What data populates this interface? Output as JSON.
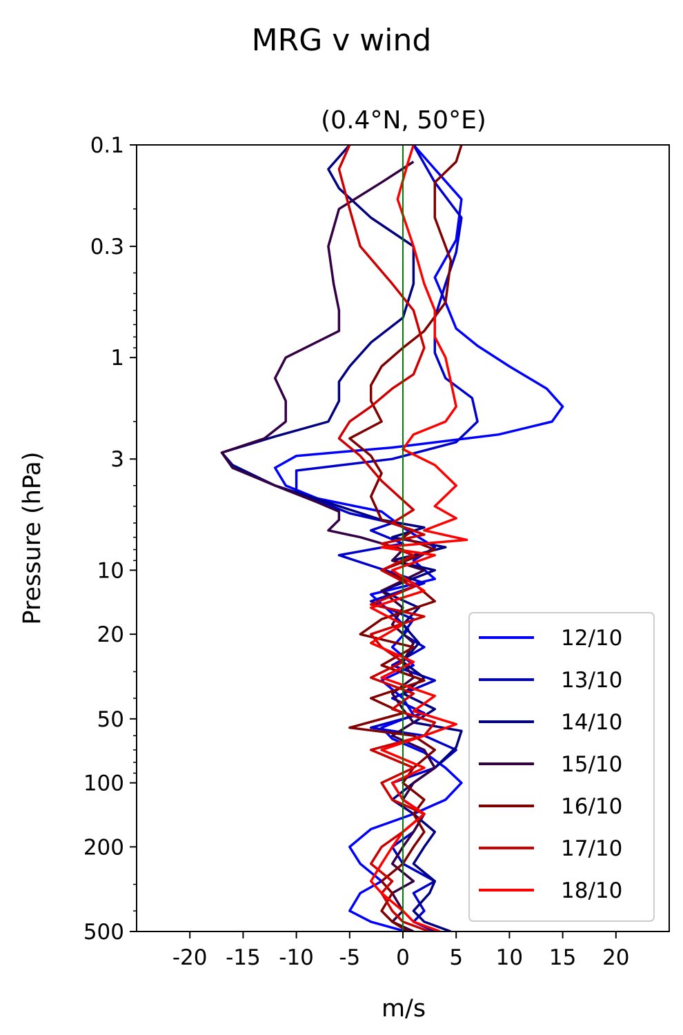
{
  "chart_data": {
    "type": "line",
    "title": "MRG v wind",
    "subtitle": "(0.4°N, 50°E)",
    "xlabel": "m/s",
    "ylabel": "Pressure (hPa)",
    "xlim": [
      -25,
      25
    ],
    "ylim": [
      500,
      0.1
    ],
    "yscale": "log",
    "xticks": [
      -20,
      -15,
      -10,
      -5,
      0,
      5,
      10,
      15,
      20
    ],
    "xtick_labels": [
      "-20",
      "-15",
      "-10",
      "-5",
      "0",
      "5",
      "10",
      "15",
      "20"
    ],
    "yticks": [
      0.1,
      0.3,
      1,
      3,
      10,
      20,
      50,
      100,
      200,
      500
    ],
    "ytick_labels": [
      "0.1",
      "0.3",
      "1",
      "3",
      "10",
      "20",
      "50",
      "100",
      "200",
      "500"
    ],
    "grid": false,
    "legend": "lower-right",
    "reference_line": {
      "x": 0,
      "color": "#008000"
    },
    "series": [
      {
        "name": "12/10",
        "color": "#0000ff",
        "points": [
          [
            0.3,
            500
          ],
          [
            -3,
            450
          ],
          [
            -5,
            400
          ],
          [
            -4,
            330
          ],
          [
            -2,
            290
          ],
          [
            -4,
            240
          ],
          [
            -5,
            200
          ],
          [
            -3,
            165
          ],
          [
            1,
            140
          ],
          [
            4,
            120
          ],
          [
            5.5,
            100
          ],
          [
            4,
            85
          ],
          [
            2,
            72
          ],
          [
            -1,
            62
          ],
          [
            -2,
            55
          ],
          [
            1,
            48
          ],
          [
            0,
            40
          ],
          [
            -2,
            33
          ],
          [
            1,
            28
          ],
          [
            -1,
            23
          ],
          [
            0.5,
            19
          ],
          [
            -1,
            16
          ],
          [
            -3,
            13
          ],
          [
            3,
            11
          ],
          [
            1,
            9
          ],
          [
            3,
            7.8
          ],
          [
            0,
            6.3
          ],
          [
            -2,
            5.3
          ],
          [
            -8,
            4.6
          ],
          [
            -11,
            4
          ],
          [
            -12,
            3.3
          ],
          [
            -10,
            2.9
          ],
          [
            -1,
            2.65
          ],
          [
            9,
            2.3
          ],
          [
            14,
            2
          ],
          [
            15,
            1.7
          ],
          [
            13.5,
            1.4
          ],
          [
            10,
            1.1
          ],
          [
            7,
            0.88
          ],
          [
            5,
            0.73
          ],
          [
            4,
            0.55
          ],
          [
            3,
            0.42
          ],
          [
            5,
            0.28
          ],
          [
            5.5,
            0.18
          ],
          [
            3,
            0.13
          ],
          [
            1,
            0.1
          ]
        ]
      },
      {
        "name": "13/10",
        "color": "#0000cc",
        "points": [
          [
            3,
            500
          ],
          [
            1,
            450
          ],
          [
            2,
            400
          ],
          [
            1,
            330
          ],
          [
            3,
            290
          ],
          [
            0,
            240
          ],
          [
            -1,
            200
          ],
          [
            1,
            170
          ],
          [
            2,
            140
          ],
          [
            0,
            120
          ],
          [
            -1,
            100
          ],
          [
            3,
            85
          ],
          [
            5,
            70
          ],
          [
            2,
            60
          ],
          [
            -3,
            55
          ],
          [
            2,
            47
          ],
          [
            -1,
            40
          ],
          [
            3,
            33
          ],
          [
            -1,
            28
          ],
          [
            2,
            23
          ],
          [
            0,
            20
          ],
          [
            1,
            17
          ],
          [
            -3,
            14
          ],
          [
            2,
            11.5
          ],
          [
            -6,
            8.5
          ],
          [
            0,
            7.5
          ],
          [
            -3,
            6.5
          ],
          [
            -1,
            6
          ],
          [
            -5,
            5.4
          ],
          [
            -10,
            4.3
          ],
          [
            -10,
            3.4
          ],
          [
            -1,
            3
          ],
          [
            5,
            2.5
          ],
          [
            7,
            2
          ],
          [
            6.5,
            1.55
          ],
          [
            4,
            1.25
          ],
          [
            3,
            0.95
          ],
          [
            3,
            0.65
          ],
          [
            4,
            0.45
          ],
          [
            5,
            0.32
          ],
          [
            5.5,
            0.22
          ],
          [
            3,
            0.15
          ],
          [
            1,
            0.1
          ]
        ]
      },
      {
        "name": "14/10",
        "color": "#000080",
        "points": [
          [
            4.5,
            500
          ],
          [
            2,
            450
          ],
          [
            1,
            400
          ],
          [
            2.5,
            330
          ],
          [
            3,
            290
          ],
          [
            1,
            240
          ],
          [
            2,
            200
          ],
          [
            3,
            170
          ],
          [
            1,
            140
          ],
          [
            -1,
            120
          ],
          [
            1,
            100
          ],
          [
            3,
            85
          ],
          [
            5,
            68
          ],
          [
            5.5,
            57
          ],
          [
            1,
            52
          ],
          [
            3,
            45
          ],
          [
            0,
            38
          ],
          [
            2,
            32
          ],
          [
            0,
            27
          ],
          [
            1.5,
            22
          ],
          [
            0,
            18
          ],
          [
            1.5,
            15
          ],
          [
            -2,
            12.5
          ],
          [
            3,
            10
          ],
          [
            -1,
            9
          ],
          [
            4,
            7.8
          ],
          [
            -1,
            7
          ],
          [
            2,
            6.3
          ],
          [
            -2,
            5.8
          ],
          [
            -6,
            5
          ],
          [
            -12,
            4
          ],
          [
            -16,
            3.2
          ],
          [
            -17,
            2.8
          ],
          [
            -12,
            2.35
          ],
          [
            -7,
            2
          ],
          [
            -6,
            1.6
          ],
          [
            -6,
            1.3
          ],
          [
            -5,
            1.1
          ],
          [
            -3,
            0.85
          ],
          [
            0,
            0.65
          ],
          [
            1,
            0.45
          ],
          [
            1,
            0.3
          ],
          [
            -3,
            0.22
          ],
          [
            -6,
            0.16
          ],
          [
            -7,
            0.13
          ],
          [
            -5,
            0.1
          ]
        ]
      },
      {
        "name": "15/10",
        "color": "#330044",
        "points": [
          [
            1,
            500
          ],
          [
            -1,
            450
          ],
          [
            0,
            400
          ],
          [
            -1,
            330
          ],
          [
            1,
            290
          ],
          [
            -1,
            240
          ],
          [
            0,
            200
          ],
          [
            1,
            170
          ],
          [
            2,
            140
          ],
          [
            0,
            120
          ],
          [
            1,
            100
          ],
          [
            3,
            85
          ],
          [
            2,
            70
          ],
          [
            -1,
            60
          ],
          [
            1,
            52
          ],
          [
            0,
            45
          ],
          [
            -1,
            38
          ],
          [
            1,
            32
          ],
          [
            0,
            27
          ],
          [
            1,
            22
          ],
          [
            -1,
            18
          ],
          [
            0,
            15
          ],
          [
            -2,
            12.5
          ],
          [
            2,
            10
          ],
          [
            -1,
            9
          ],
          [
            0,
            8
          ],
          [
            -4,
            7
          ],
          [
            -7,
            6.5
          ],
          [
            -6,
            5.8
          ],
          [
            -6,
            5.3
          ],
          [
            -8,
            4.8
          ],
          [
            -12,
            4
          ],
          [
            -16,
            3.3
          ],
          [
            -17,
            2.8
          ],
          [
            -13,
            2.4
          ],
          [
            -11,
            2
          ],
          [
            -11,
            1.6
          ],
          [
            -12,
            1.25
          ],
          [
            -11,
            1
          ],
          [
            -6,
            0.75
          ],
          [
            -6,
            0.6
          ],
          [
            -6.5,
            0.45
          ],
          [
            -7,
            0.3
          ],
          [
            -6,
            0.2
          ],
          [
            -2,
            0.15
          ],
          [
            1,
            0.12
          ]
        ]
      },
      {
        "name": "16/10",
        "color": "#800000",
        "points": [
          [
            0.5,
            500
          ],
          [
            -1,
            450
          ],
          [
            -2,
            400
          ],
          [
            -1,
            330
          ],
          [
            -2,
            290
          ],
          [
            0,
            240
          ],
          [
            1,
            200
          ],
          [
            2,
            170
          ],
          [
            1,
            140
          ],
          [
            2,
            120
          ],
          [
            0,
            100
          ],
          [
            1,
            85
          ],
          [
            3,
            70
          ],
          [
            1,
            60
          ],
          [
            -5,
            55
          ],
          [
            0,
            47
          ],
          [
            -3,
            40
          ],
          [
            2,
            33
          ],
          [
            -2,
            28
          ],
          [
            1,
            23
          ],
          [
            -4,
            20
          ],
          [
            -2,
            17
          ],
          [
            3,
            14
          ],
          [
            1,
            11.5
          ],
          [
            -2,
            10
          ],
          [
            3,
            8
          ],
          [
            0,
            7
          ],
          [
            1,
            6.5
          ],
          [
            -2,
            5.8
          ],
          [
            -3,
            4.5
          ],
          [
            -2,
            3.5
          ],
          [
            -3,
            2.9
          ],
          [
            -5,
            2.4
          ],
          [
            -2,
            2
          ],
          [
            -3,
            1.6
          ],
          [
            -3,
            1.35
          ],
          [
            -2,
            1.1
          ],
          [
            0,
            0.9
          ],
          [
            2,
            0.75
          ],
          [
            4,
            0.55
          ],
          [
            4.5,
            0.35
          ],
          [
            3,
            0.22
          ],
          [
            3,
            0.15
          ],
          [
            5,
            0.12
          ],
          [
            5.5,
            0.1
          ]
        ]
      },
      {
        "name": "17/10",
        "color": "#cc0000",
        "points": [
          [
            2.5,
            500
          ],
          [
            0,
            450
          ],
          [
            -1,
            400
          ],
          [
            -2,
            330
          ],
          [
            -1,
            290
          ],
          [
            -3,
            240
          ],
          [
            -2,
            200
          ],
          [
            0,
            170
          ],
          [
            2,
            140
          ],
          [
            -1,
            120
          ],
          [
            -2,
            100
          ],
          [
            1,
            85
          ],
          [
            -3,
            70
          ],
          [
            2,
            60
          ],
          [
            3,
            52
          ],
          [
            -1,
            45
          ],
          [
            1,
            38
          ],
          [
            -3,
            32
          ],
          [
            0,
            27
          ],
          [
            -2,
            23
          ],
          [
            -3,
            20
          ],
          [
            2,
            16.5
          ],
          [
            -3,
            14.5
          ],
          [
            1,
            12
          ],
          [
            -2,
            10
          ],
          [
            1,
            8.5
          ],
          [
            -2,
            7.5
          ],
          [
            2,
            6.8
          ],
          [
            -1,
            6
          ],
          [
            1,
            5.2
          ],
          [
            -2,
            3.8
          ],
          [
            -4,
            2.9
          ],
          [
            -6,
            2.4
          ],
          [
            -5,
            2
          ],
          [
            -3,
            1.7
          ],
          [
            -1,
            1.4
          ],
          [
            1,
            1.2
          ],
          [
            2,
            0.9
          ],
          [
            1,
            0.6
          ],
          [
            -1,
            0.45
          ],
          [
            -4,
            0.3
          ],
          [
            -5,
            0.2
          ],
          [
            -6,
            0.13
          ],
          [
            -5,
            0.1
          ]
        ]
      },
      {
        "name": "18/10",
        "color": "#ff0000",
        "points": [
          [
            3.5,
            500
          ],
          [
            1,
            450
          ],
          [
            0,
            400
          ],
          [
            -2,
            330
          ],
          [
            -3,
            290
          ],
          [
            -2,
            240
          ],
          [
            -1,
            200
          ],
          [
            0,
            170
          ],
          [
            2,
            140
          ],
          [
            0,
            120
          ],
          [
            -1,
            100
          ],
          [
            2,
            85
          ],
          [
            -2,
            70
          ],
          [
            2,
            60
          ],
          [
            5,
            53
          ],
          [
            1,
            46
          ],
          [
            3,
            39
          ],
          [
            -2,
            32
          ],
          [
            1,
            27
          ],
          [
            -3,
            22
          ],
          [
            0,
            18
          ],
          [
            -3,
            15
          ],
          [
            2,
            12.5
          ],
          [
            -1,
            10
          ],
          [
            3,
            8.5
          ],
          [
            -2,
            7.8
          ],
          [
            6,
            7.2
          ],
          [
            2,
            6.5
          ],
          [
            5,
            5.7
          ],
          [
            3,
            5
          ],
          [
            5,
            4
          ],
          [
            3,
            3.2
          ],
          [
            0,
            2.7
          ],
          [
            1,
            2.3
          ],
          [
            4,
            2
          ],
          [
            5,
            1.7
          ],
          [
            4.5,
            1.3
          ],
          [
            4,
            1
          ],
          [
            3,
            0.8
          ],
          [
            3,
            0.6
          ],
          [
            2,
            0.45
          ],
          [
            1,
            0.3
          ],
          [
            -0.5,
            0.18
          ],
          [
            0.5,
            0.12
          ],
          [
            1,
            0.1
          ]
        ]
      }
    ]
  }
}
